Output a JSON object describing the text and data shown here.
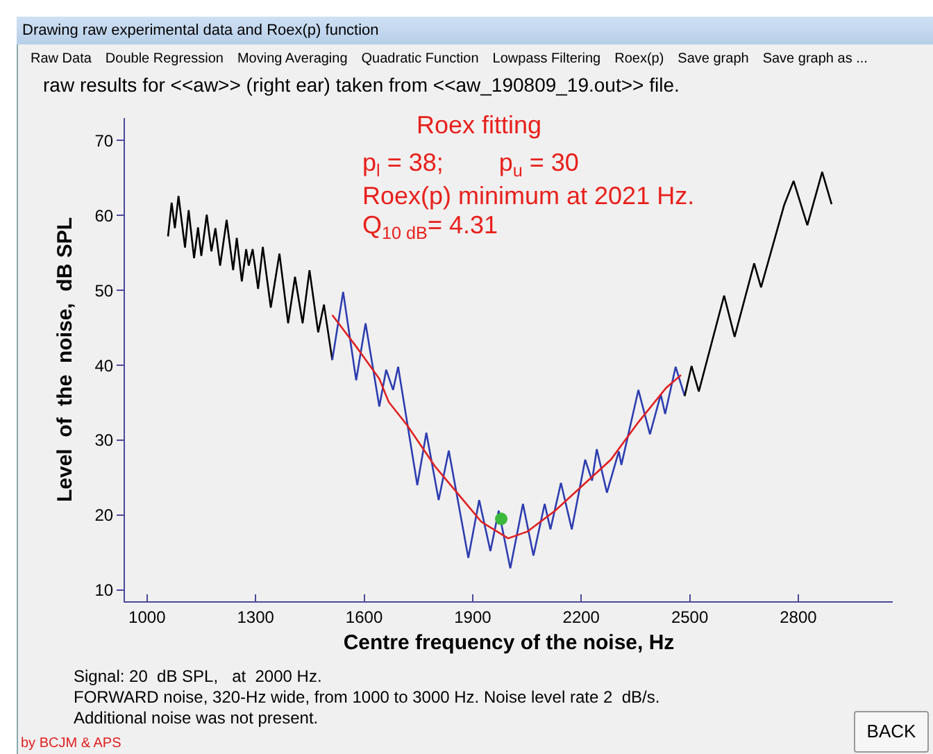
{
  "chart_data": {
    "type": "line",
    "title": "raw results for <<aw>> (right ear) taken from <<aw_190809_19.out>> file.",
    "xlabel": "Centre frequency of the noise, Hz",
    "ylabel": "Level  of  the  noise,  dB SPL",
    "xlim": [
      939,
      3061
    ],
    "ylim": [
      8.5,
      73
    ],
    "xticks": [
      1000,
      1300,
      1600,
      1900,
      2200,
      2500,
      2800
    ],
    "yticks": [
      10,
      20,
      30,
      40,
      50,
      60,
      70
    ],
    "marker": "none",
    "line_style": "solid",
    "series": [
      {
        "color": "#000000",
        "x": [
          1058,
          1068,
          1077,
          1087,
          1105,
          1115,
          1130,
          1141,
          1150,
          1165,
          1178,
          1189,
          1202,
          1220,
          1238,
          1248,
          1262,
          1274,
          1281,
          1292,
          1307,
          1320,
          1342,
          1366,
          1390,
          1409,
          1430,
          1449,
          1473,
          1489,
          1512
        ],
        "values": [
          57.2,
          61.7,
          58.3,
          62.6,
          55.7,
          60.7,
          54.3,
          58.4,
          54.6,
          60.1,
          55.2,
          58.3,
          53.3,
          59.4,
          52.7,
          57.0,
          51.2,
          55.5,
          53.3,
          55.5,
          50.2,
          55.8,
          47.7,
          54.9,
          45.6,
          51.8,
          45.6,
          52.7,
          44.4,
          48.1,
          40.7
        ]
      },
      {
        "color": "#2e3db0",
        "x": [
          1512,
          1542,
          1578,
          1604,
          1642,
          1661,
          1680,
          1694,
          1747,
          1772,
          1806,
          1834,
          1888,
          1918,
          1949,
          1972,
          2004,
          2039,
          2068,
          2099,
          2115,
          2144,
          2174,
          2211,
          2230,
          2243,
          2271,
          2304,
          2311,
          2358,
          2390,
          2420,
          2432,
          2461,
          2486
        ],
        "values": [
          40.7,
          49.8,
          38.0,
          45.6,
          34.5,
          39.4,
          36.7,
          39.8,
          24.0,
          31.0,
          22.0,
          28.6,
          14.3,
          22.0,
          15.2,
          20.6,
          12.9,
          21.5,
          14.6,
          21.5,
          18.1,
          24.3,
          18.1,
          27.4,
          24.6,
          28.8,
          23.0,
          28.5,
          26.7,
          36.7,
          30.8,
          36.1,
          33.5,
          39.8,
          35.9
        ]
      },
      {
        "color": "#000000",
        "x": [
          2486,
          2505,
          2525,
          2595,
          2624,
          2678,
          2697,
          2761,
          2787,
          2825,
          2866,
          2892
        ],
        "values": [
          35.9,
          39.9,
          36.5,
          49.3,
          43.8,
          53.6,
          50.4,
          61.4,
          64.6,
          58.7,
          65.8,
          61.5
        ]
      },
      {
        "color": "#e02020",
        "x": [
          1512,
          1578,
          1642,
          1668,
          1719,
          1796,
          1860,
          1924,
          1998,
          2051,
          2128,
          2205,
          2282,
          2358,
          2435,
          2476
        ],
        "values": [
          46.7,
          42.5,
          38.2,
          35.1,
          32.0,
          26.5,
          22.8,
          19.1,
          16.9,
          17.8,
          20.6,
          24.0,
          27.4,
          32.4,
          37.0,
          38.7
        ]
      },
      {
        "type": "scatter",
        "marker": "circle",
        "color": "#3cb83c",
        "x": [
          1979
        ],
        "values": [
          19.5
        ]
      }
    ],
    "annotations": [
      "Drawing raw experimental data and Roex(p) function",
      "Raw Data",
      "Double Regression",
      "Moving Averaging",
      "Quadratic Function",
      "Lowpass Filtering",
      "Roex(p)",
      "Save graph",
      "Save graph as ...",
      "Roex fitting",
      "p$_{l}$ = 38;        p$_{u}$ = 30",
      "Roex(p) minimum at 2021 Hz.",
      "Q$_{10 dB}$= 4.31",
      "Signal: 20  dB SPL,   at  2000 Hz.",
      "FORWARD noise, 320-Hz wide, from 1000 to 3000 Hz. Noise level rate 2  dB/s.",
      "Additional noise was not present.",
      "by BCJM & APS",
      "BACK"
    ]
  }
}
